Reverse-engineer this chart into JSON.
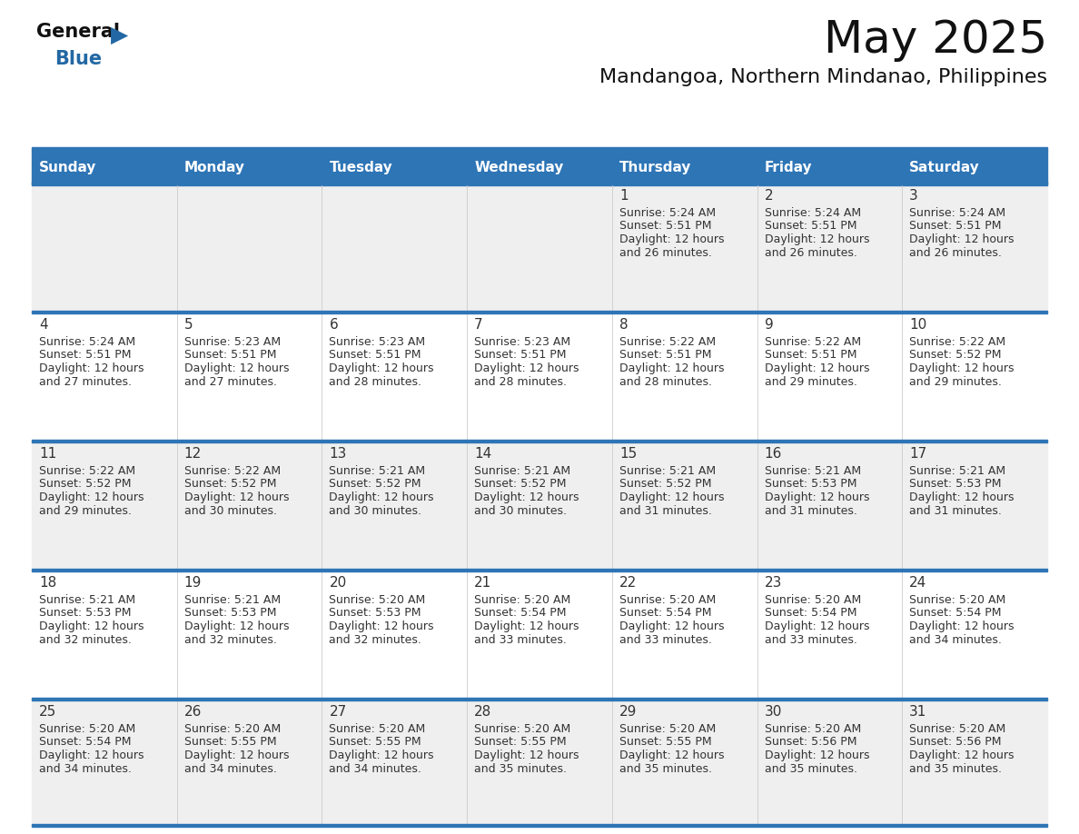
{
  "title": "May 2025",
  "subtitle": "Mandangoa, Northern Mindanao, Philippines",
  "days_of_week": [
    "Sunday",
    "Monday",
    "Tuesday",
    "Wednesday",
    "Thursday",
    "Friday",
    "Saturday"
  ],
  "header_bg": "#2E75B6",
  "header_text": "#FFFFFF",
  "cell_bg_light": "#EFEFEF",
  "cell_bg_white": "#FFFFFF",
  "row_border_color": "#2E75B6",
  "text_color": "#333333",
  "calendar_data": [
    [
      null,
      null,
      null,
      null,
      {
        "day": 1,
        "sunrise": "5:24 AM",
        "sunset": "5:51 PM",
        "daylight": "12 hours",
        "daylight2": "and 26 minutes."
      },
      {
        "day": 2,
        "sunrise": "5:24 AM",
        "sunset": "5:51 PM",
        "daylight": "12 hours",
        "daylight2": "and 26 minutes."
      },
      {
        "day": 3,
        "sunrise": "5:24 AM",
        "sunset": "5:51 PM",
        "daylight": "12 hours",
        "daylight2": "and 26 minutes."
      }
    ],
    [
      {
        "day": 4,
        "sunrise": "5:24 AM",
        "sunset": "5:51 PM",
        "daylight": "12 hours",
        "daylight2": "and 27 minutes."
      },
      {
        "day": 5,
        "sunrise": "5:23 AM",
        "sunset": "5:51 PM",
        "daylight": "12 hours",
        "daylight2": "and 27 minutes."
      },
      {
        "day": 6,
        "sunrise": "5:23 AM",
        "sunset": "5:51 PM",
        "daylight": "12 hours",
        "daylight2": "and 28 minutes."
      },
      {
        "day": 7,
        "sunrise": "5:23 AM",
        "sunset": "5:51 PM",
        "daylight": "12 hours",
        "daylight2": "and 28 minutes."
      },
      {
        "day": 8,
        "sunrise": "5:22 AM",
        "sunset": "5:51 PM",
        "daylight": "12 hours",
        "daylight2": "and 28 minutes."
      },
      {
        "day": 9,
        "sunrise": "5:22 AM",
        "sunset": "5:51 PM",
        "daylight": "12 hours",
        "daylight2": "and 29 minutes."
      },
      {
        "day": 10,
        "sunrise": "5:22 AM",
        "sunset": "5:52 PM",
        "daylight": "12 hours",
        "daylight2": "and 29 minutes."
      }
    ],
    [
      {
        "day": 11,
        "sunrise": "5:22 AM",
        "sunset": "5:52 PM",
        "daylight": "12 hours",
        "daylight2": "and 29 minutes."
      },
      {
        "day": 12,
        "sunrise": "5:22 AM",
        "sunset": "5:52 PM",
        "daylight": "12 hours",
        "daylight2": "and 30 minutes."
      },
      {
        "day": 13,
        "sunrise": "5:21 AM",
        "sunset": "5:52 PM",
        "daylight": "12 hours",
        "daylight2": "and 30 minutes."
      },
      {
        "day": 14,
        "sunrise": "5:21 AM",
        "sunset": "5:52 PM",
        "daylight": "12 hours",
        "daylight2": "and 30 minutes."
      },
      {
        "day": 15,
        "sunrise": "5:21 AM",
        "sunset": "5:52 PM",
        "daylight": "12 hours",
        "daylight2": "and 31 minutes."
      },
      {
        "day": 16,
        "sunrise": "5:21 AM",
        "sunset": "5:53 PM",
        "daylight": "12 hours",
        "daylight2": "and 31 minutes."
      },
      {
        "day": 17,
        "sunrise": "5:21 AM",
        "sunset": "5:53 PM",
        "daylight": "12 hours",
        "daylight2": "and 31 minutes."
      }
    ],
    [
      {
        "day": 18,
        "sunrise": "5:21 AM",
        "sunset": "5:53 PM",
        "daylight": "12 hours",
        "daylight2": "and 32 minutes."
      },
      {
        "day": 19,
        "sunrise": "5:21 AM",
        "sunset": "5:53 PM",
        "daylight": "12 hours",
        "daylight2": "and 32 minutes."
      },
      {
        "day": 20,
        "sunrise": "5:20 AM",
        "sunset": "5:53 PM",
        "daylight": "12 hours",
        "daylight2": "and 32 minutes."
      },
      {
        "day": 21,
        "sunrise": "5:20 AM",
        "sunset": "5:54 PM",
        "daylight": "12 hours",
        "daylight2": "and 33 minutes."
      },
      {
        "day": 22,
        "sunrise": "5:20 AM",
        "sunset": "5:54 PM",
        "daylight": "12 hours",
        "daylight2": "and 33 minutes."
      },
      {
        "day": 23,
        "sunrise": "5:20 AM",
        "sunset": "5:54 PM",
        "daylight": "12 hours",
        "daylight2": "and 33 minutes."
      },
      {
        "day": 24,
        "sunrise": "5:20 AM",
        "sunset": "5:54 PM",
        "daylight": "12 hours",
        "daylight2": "and 34 minutes."
      }
    ],
    [
      {
        "day": 25,
        "sunrise": "5:20 AM",
        "sunset": "5:54 PM",
        "daylight": "12 hours",
        "daylight2": "and 34 minutes."
      },
      {
        "day": 26,
        "sunrise": "5:20 AM",
        "sunset": "5:55 PM",
        "daylight": "12 hours",
        "daylight2": "and 34 minutes."
      },
      {
        "day": 27,
        "sunrise": "5:20 AM",
        "sunset": "5:55 PM",
        "daylight": "12 hours",
        "daylight2": "and 34 minutes."
      },
      {
        "day": 28,
        "sunrise": "5:20 AM",
        "sunset": "5:55 PM",
        "daylight": "12 hours",
        "daylight2": "and 35 minutes."
      },
      {
        "day": 29,
        "sunrise": "5:20 AM",
        "sunset": "5:55 PM",
        "daylight": "12 hours",
        "daylight2": "and 35 minutes."
      },
      {
        "day": 30,
        "sunrise": "5:20 AM",
        "sunset": "5:56 PM",
        "daylight": "12 hours",
        "daylight2": "and 35 minutes."
      },
      {
        "day": 31,
        "sunrise": "5:20 AM",
        "sunset": "5:56 PM",
        "daylight": "12 hours",
        "daylight2": "and 35 minutes."
      }
    ]
  ]
}
